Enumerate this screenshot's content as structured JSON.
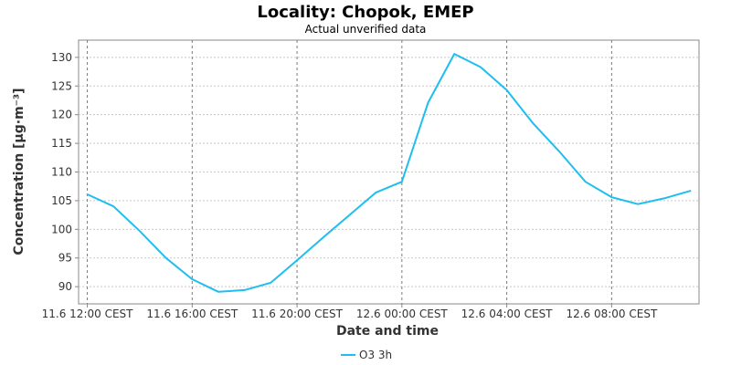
{
  "chart_data": {
    "type": "line",
    "title": "Locality: Chopok, EMEP",
    "subtitle": "Actual unverified data",
    "xlabel": "Date and time",
    "ylabel": "Concentration [µg·m⁻³]",
    "ylim": [
      87,
      133
    ],
    "y_ticks": [
      90,
      95,
      100,
      105,
      110,
      115,
      120,
      125,
      130
    ],
    "x_ticks": [
      "11.6 12:00 CEST",
      "11.6 16:00 CEST",
      "11.6 20:00 CEST",
      "12.6 00:00 CEST",
      "12.6 04:00 CEST",
      "12.6 08:00 CEST"
    ],
    "x_range": [
      "11.6 11:40 CEST",
      "12.6 11:20 CEST"
    ],
    "grid": true,
    "legend_position": "bottom",
    "series": [
      {
        "name": "O3 3h",
        "color": "#1ebef0",
        "x": [
          "11.6 12:00 CEST",
          "11.6 13:00 CEST",
          "11.6 14:00 CEST",
          "11.6 15:00 CEST",
          "11.6 16:00 CEST",
          "11.6 17:00 CEST",
          "11.6 18:00 CEST",
          "11.6 19:00 CEST",
          "11.6 20:00 CEST",
          "11.6 21:00 CEST",
          "11.6 22:00 CEST",
          "11.6 23:00 CEST",
          "12.6 00:00 CEST",
          "12.6 01:00 CEST",
          "12.6 02:00 CEST",
          "12.6 03:00 CEST",
          "12.6 04:00 CEST",
          "12.6 05:00 CEST",
          "12.6 06:00 CEST",
          "12.6 07:00 CEST",
          "12.6 08:00 CEST",
          "12.6 09:00 CEST",
          "12.6 10:00 CEST",
          "12.6 11:00 CEST"
        ],
        "values": [
          106.1,
          104.0,
          99.7,
          95.0,
          91.3,
          89.1,
          89.4,
          90.7,
          94.6,
          98.6,
          102.5,
          106.4,
          108.3,
          122.1,
          130.6,
          128.3,
          124.3,
          118.5,
          113.6,
          108.3,
          105.6,
          104.4,
          105.4,
          106.7
        ]
      }
    ]
  }
}
